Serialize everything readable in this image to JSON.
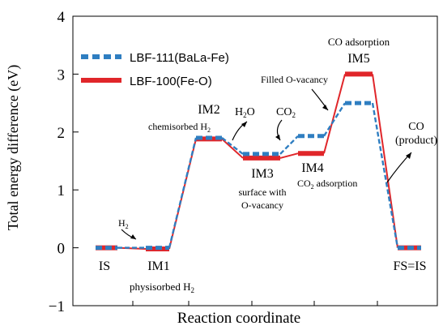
{
  "chart_data": {
    "type": "line",
    "xlabel": "Reaction coordinate",
    "ylabel": "Total energy difference (eV)",
    "ylim": [
      -1,
      4
    ],
    "yticks": [
      "−1",
      "0",
      "1",
      "2",
      "3",
      "4"
    ],
    "grid": false,
    "legend_position": "top-left",
    "series": [
      {
        "name": "LBF-111(BaLa-Fe)",
        "color": "#2f7ec1",
        "style": "dashed",
        "values": [
          0.0,
          0.0,
          1.9,
          1.62,
          1.93,
          2.5,
          0.0
        ]
      },
      {
        "name": "LBF-100(Fe-O)",
        "color": "#e0262a",
        "style": "solid",
        "values": [
          0.0,
          -0.02,
          1.88,
          1.55,
          1.63,
          3.0,
          0.0
        ]
      }
    ],
    "states": [
      {
        "label": "IS",
        "sub": ""
      },
      {
        "label": "IM1",
        "sub": ""
      },
      {
        "label": "IM2",
        "sub": ""
      },
      {
        "label": "IM3",
        "sub": ""
      },
      {
        "label": "IM4",
        "sub": ""
      },
      {
        "label": "IM5",
        "sub": ""
      },
      {
        "label": "FS=IS",
        "sub": ""
      }
    ],
    "annotations": {
      "h2": "H",
      "h2_sub": "2",
      "physisorbed": "physisorbed H",
      "physisorbed_sub": "2",
      "chemisorbed": "chemisorbed H",
      "chemisorbed_sub": "2",
      "h2o_h": "H",
      "h2o_sub": "2",
      "h2o_o": "O",
      "co2_co": "CO",
      "co2_sub": "2",
      "surface_line1": "surface with",
      "surface_line2": "O-vacancy",
      "co2_ads_co": "CO",
      "co2_ads_sub": "2",
      "co2_ads_rest": " adsorption",
      "filled": "Filled O-vacancy",
      "co_adsorption": "CO adsorption",
      "co_product_line1": "CO",
      "co_product_line2": "(product)"
    }
  }
}
